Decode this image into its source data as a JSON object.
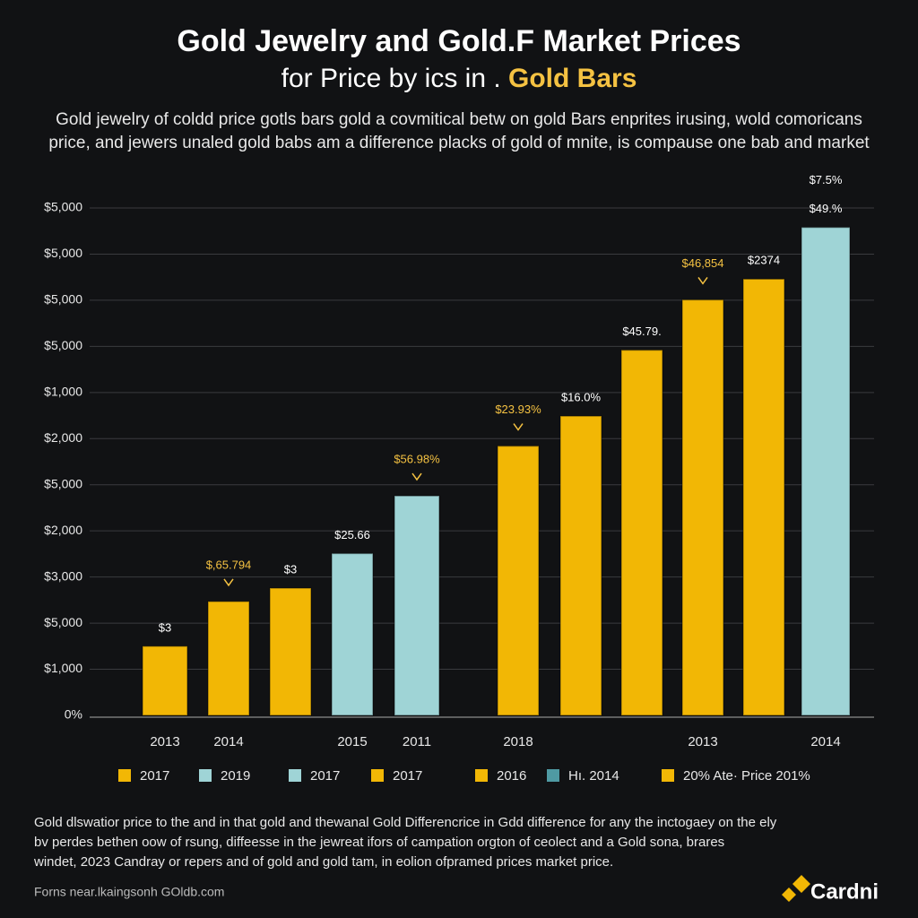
{
  "chart_data": {
    "type": "bar",
    "title": "Gold Jewelry and Gold.F Market Prices",
    "subtitle": [
      "for Price by ics in . ",
      "Gold Bars"
    ],
    "description": [
      "Gold jewelry of coldd price gotls bars gold a covmitical betw on gold Bars enprites irusing, wold comoricans",
      "price, and jewers unaled gold babs am a difference placks of gold of mnite, is compause one bab and market"
    ],
    "categories": [
      "2013",
      "2014",
      null,
      "2015",
      "2011",
      "2018",
      null,
      null,
      "2013",
      null,
      "2014"
    ],
    "values": [
      1.5,
      2.47,
      2.76,
      3.51,
      4.76,
      5.84,
      6.49,
      7.92,
      9.01,
      9.46,
      10.58
    ],
    "colors": [
      "#f2b705",
      "#f2b705",
      "#f2b705",
      "#9fd4d6",
      "#9fd4d6",
      "#f2b705",
      "#f2b705",
      "#f2b705",
      "#f2b705",
      "#f2b705",
      "#9fd4d6"
    ],
    "annotations": [
      [
        {
          "text": "$3",
          "color": "#ffffff"
        }
      ],
      [
        {
          "text": "$,65.794",
          "color": "#f5c242"
        }
      ],
      [
        {
          "text": "$3",
          "color": "#ffffff"
        }
      ],
      [
        {
          "text": "$25.66",
          "color": "#ffffff"
        }
      ],
      [
        {
          "text": "$56.98%",
          "color": "#f5c242"
        }
      ],
      [
        {
          "text": "$23.93%",
          "color": "#f5c242"
        }
      ],
      [
        {
          "text": "$16.0%",
          "color": "#ffffff"
        }
      ],
      [
        {
          "text": "$45.79.",
          "color": "#ffffff"
        }
      ],
      [
        {
          "text": "$46,854",
          "color": "#f5c242"
        }
      ],
      [
        {
          "text": "$2374",
          "color": "#ffffff"
        }
      ],
      [
        {
          "text": "$49.%",
          "color": "#ffffff"
        },
        {
          "text": "$7.5%",
          "color": "#ffffff"
        }
      ]
    ],
    "ylim": [
      0,
      11.5
    ],
    "yticks": [
      {
        "value": 0,
        "label": "0%"
      },
      {
        "value": 1,
        "label": "$1,000"
      },
      {
        "value": 2,
        "label": "$5,000"
      },
      {
        "value": 3,
        "label": "$3,000"
      },
      {
        "value": 4,
        "label": "$2,000"
      },
      {
        "value": 5,
        "label": "$5,000"
      },
      {
        "value": 6,
        "label": "$2,000"
      },
      {
        "value": 7,
        "label": "$1,000"
      },
      {
        "value": 8,
        "label": "$5,000"
      },
      {
        "value": 9,
        "label": "$5,000"
      },
      {
        "value": 10,
        "label": "$5,000"
      },
      {
        "value": 11,
        "label": "$5,000"
      }
    ],
    "grid": true,
    "legend": [
      {
        "name": "2017",
        "color": "#f2b705"
      },
      {
        "name": "2019",
        "color": "#9fd4d6"
      },
      {
        "name": "2017",
        "color": "#9fd4d6"
      },
      {
        "name": "2017",
        "color": "#f2b705"
      },
      {
        "name": "2016",
        "color": "#f2b705"
      },
      {
        "name": "Hı. 2014",
        "color": "#4f9aa3"
      },
      {
        "name": "20% Ate· Price 201%",
        "color": "#f2b705"
      }
    ],
    "footnote": [
      "Gold dlswatior price to the and in that gold and thewanal Gold Differencrice in Gdd difference for any the inctogaey on the ely",
      "bv perdes bethen oow of rsung, diffeesse in the jewreat ifors of campation orgton of ceolect and a Gold sona, brares",
      "windet, 2023 Candray or repers and of gold and gold tam, in eolion ofpramed prices market price."
    ],
    "source": "Forns near.lkaingsonh GOldb.com",
    "brand": "Cardni"
  }
}
